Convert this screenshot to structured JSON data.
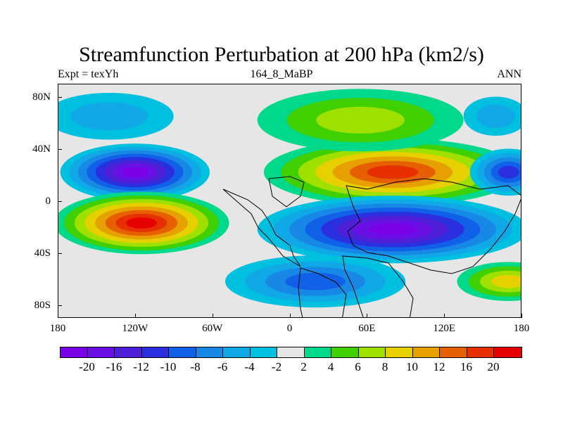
{
  "title": "Streamfunction Perturbation at 200 hPa (km2/s)",
  "subtitle_left": "Expt = texYh",
  "subtitle_center": "164_8_MaBP",
  "subtitle_right": "ANN",
  "axes": {
    "y_ticks": [
      "80N",
      "40N",
      "0",
      "40S",
      "80S"
    ],
    "x_ticks": [
      "180",
      "120W",
      "60W",
      "0",
      "60E",
      "120E",
      "180"
    ],
    "lat_range": [
      -90,
      90
    ],
    "lon_range": [
      -180,
      180
    ]
  },
  "colorbar": {
    "colors": [
      "#7a00e6",
      "#6a10e6",
      "#5020d8",
      "#2a30e0",
      "#1060e8",
      "#1888e6",
      "#10a8e6",
      "#00c0e0",
      "#e6e6e6",
      "#00d88a",
      "#40d000",
      "#a0e000",
      "#e6d000",
      "#e6a000",
      "#e66000",
      "#e63000",
      "#e60000"
    ],
    "labels": [
      "-20",
      "-16",
      "-12",
      "-10",
      "-8",
      "-6",
      "-4",
      "-2",
      "2",
      "4",
      "6",
      "8",
      "10",
      "12",
      "16",
      "20"
    ]
  },
  "map_data": {
    "type": "filled-contour",
    "field": "200 hPa streamfunction perturbation",
    "units": "km2/s",
    "features": [
      {
        "lon": -120,
        "lat": 22,
        "rx": 58,
        "ry": 22,
        "value": -20
      },
      {
        "lon": -115,
        "lat": -17,
        "rx": 68,
        "ry": 24,
        "value": 20
      },
      {
        "lon": 80,
        "lat": 22,
        "rx": 100,
        "ry": 26,
        "value": 16
      },
      {
        "lon": 80,
        "lat": -22,
        "rx": 105,
        "ry": 26,
        "value": -20
      },
      {
        "lon": 55,
        "lat": 62,
        "rx": 80,
        "ry": 24,
        "value": 6
      },
      {
        "lon": 20,
        "lat": -62,
        "rx": 70,
        "ry": 20,
        "value": -8
      },
      {
        "lon": 170,
        "lat": 22,
        "rx": 30,
        "ry": 18,
        "value": -10
      },
      {
        "lon": 170,
        "lat": -62,
        "rx": 40,
        "ry": 15,
        "value": 8
      },
      {
        "lon": -140,
        "lat": 65,
        "rx": 50,
        "ry": 18,
        "value": -4
      },
      {
        "lon": 160,
        "lat": 65,
        "rx": 25,
        "ry": 15,
        "value": -4
      }
    ]
  }
}
